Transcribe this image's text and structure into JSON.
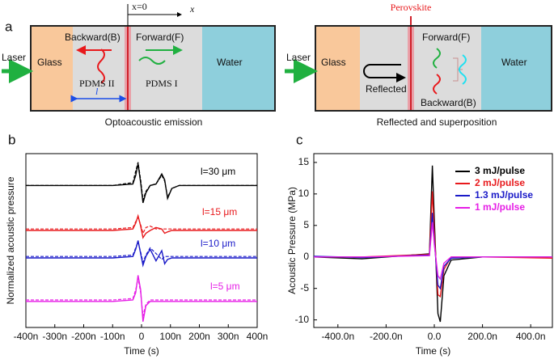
{
  "diagram": {
    "label": "a",
    "origin": "x=0",
    "axis": "x",
    "left": {
      "laser": "Laser",
      "glass": "Glass",
      "water": "Water",
      "backward": "Backward(B)",
      "forward": "Forward(F)",
      "pdms2": "PDMS II",
      "pdms1": "PDMS I",
      "thickness": "l",
      "caption": "Optoacoustic emission"
    },
    "right": {
      "perovskite": "Perovskite",
      "laser": "Laser",
      "glass": "Glass",
      "water": "Water",
      "forward": "Forward(F)",
      "reflected": "Reflected",
      "backward": "Backward(B)",
      "caption": "Reflected and superposition"
    }
  },
  "chart_data": [
    {
      "type": "line",
      "label": "b",
      "xlabel": "Time (s)",
      "ylabel": "Normalized acoustic pressure",
      "xlim": [
        -4e-07,
        4e-07
      ],
      "ylim": [
        0,
        12
      ],
      "xticks": [
        {
          "value": -4e-07,
          "label": "-400n"
        },
        {
          "value": -3e-07,
          "label": "-300n"
        },
        {
          "value": -2e-07,
          "label": "-200n"
        },
        {
          "value": -1e-07,
          "label": "-100n"
        },
        0,
        {
          "value": 1e-07,
          "label": "100n"
        },
        {
          "value": 2e-07,
          "label": "200n"
        },
        {
          "value": 3e-07,
          "label": "300n"
        },
        {
          "value": 4e-07,
          "label": "400n"
        }
      ],
      "x": [
        -4e-07,
        -1e-07,
        -3e-08,
        -2e-08,
        -1.2e-08,
        -3e-09,
        5e-09,
        1.5e-08,
        3e-08,
        5e-08,
        7e-08,
        8e-08,
        9e-08,
        1.05e-07,
        1.3e-07,
        2e-07,
        4e-07
      ],
      "series": [
        {
          "name": "l=30 μm",
          "color": "#000000",
          "values": [
            9.8,
            9.8,
            9.9,
            10.5,
            11.3,
            10,
            8.6,
            9.3,
            9.8,
            9.9,
            10.6,
            10.2,
            8.9,
            9.6,
            9.8,
            9.8,
            9.8
          ],
          "dashed_values": [
            9.8,
            9.8,
            10,
            10.8,
            11.4,
            10.2,
            8.8,
            9.4,
            9.8,
            9.9,
            10.5,
            10.1,
            9.0,
            9.6,
            9.8,
            9.8,
            9.8
          ]
        },
        {
          "name": "l=15 μm",
          "color": "#e8191c",
          "values": [
            6.7,
            6.7,
            6.8,
            7.2,
            7.7,
            7.0,
            6.2,
            6.5,
            6.7,
            6.9,
            6.8,
            6.5,
            6.6,
            6.7,
            6.7,
            6.7,
            6.7
          ],
          "dashed_values": [
            6.8,
            6.8,
            6.9,
            7.3,
            7.6,
            7.1,
            6.5,
            6.9,
            7.0,
            6.8,
            6.8,
            6.8,
            6.8,
            6.8,
            6.8,
            6.8,
            6.8
          ]
        },
        {
          "name": "l=10 μm",
          "color": "#1a1ac8",
          "values": [
            4.8,
            4.8,
            4.9,
            5.4,
            6.0,
            5.1,
            4.3,
            4.9,
            5.4,
            4.6,
            5.3,
            4.4,
            4.7,
            4.8,
            4.8,
            4.8,
            4.8
          ],
          "dashed_values": [
            4.9,
            4.9,
            5.0,
            5.5,
            5.9,
            5.2,
            4.5,
            5.0,
            5.5,
            5.1,
            4.7,
            4.9,
            4.9,
            4.9,
            4.9,
            4.9,
            4.9
          ]
        },
        {
          "name": "l=5 μm",
          "color": "#e61ee6",
          "values": [
            1.8,
            1.8,
            1.9,
            2.4,
            3.6,
            2.6,
            0.4,
            1.5,
            1.8,
            1.8,
            1.8,
            1.8,
            1.8,
            1.8,
            1.8,
            1.8,
            1.8
          ],
          "dashed_values": [
            1.9,
            1.9,
            2.0,
            2.6,
            3.4,
            2.4,
            0.8,
            1.6,
            1.9,
            1.9,
            1.9,
            1.9,
            1.9,
            1.9,
            1.9,
            1.9,
            1.9
          ]
        }
      ]
    },
    {
      "type": "line",
      "label": "c",
      "xlabel": "Time (s)",
      "ylabel": "Acoustic Pressure (MPa)",
      "xlim": [
        -5e-07,
        4.9e-07
      ],
      "ylim": [
        -11.2,
        16.4
      ],
      "xticks": [
        {
          "value": -4e-07,
          "label": "-400.0n"
        },
        {
          "value": -2e-07,
          "label": "-200.0n"
        },
        {
          "value": 0,
          "label": "0.0"
        },
        {
          "value": 2e-07,
          "label": "200.0n"
        },
        {
          "value": 4e-07,
          "label": "400.0n"
        }
      ],
      "yticks": [
        -10,
        -5,
        0,
        5,
        10,
        15
      ],
      "x": [
        -5e-07,
        -3e-07,
        -2e-08,
        -8e-09,
        0,
        1.5e-08,
        2.5e-08,
        4e-08,
        7e-08,
        2e-07,
        4.9e-07
      ],
      "series": [
        {
          "name": "3 mJ/pulse",
          "color": "#000000",
          "values": [
            0,
            -0.3,
            0.5,
            14.5,
            6,
            -9,
            -10.3,
            -3,
            -0.5,
            0,
            0
          ]
        },
        {
          "name": "2 mJ/pulse",
          "color": "#e8191c",
          "values": [
            0,
            0,
            0.4,
            10.4,
            4,
            -6,
            -6.3,
            -2,
            0,
            0,
            -0.2
          ]
        },
        {
          "name": "1.3 mJ/pulse",
          "color": "#1a1ac8",
          "values": [
            0.1,
            -0.1,
            0.3,
            7,
            2.5,
            -4.5,
            -5,
            -1.5,
            -0.2,
            0,
            0
          ]
        },
        {
          "name": "1 mJ/pulse",
          "color": "#e61ee6",
          "values": [
            0,
            0,
            0.2,
            5.5,
            2,
            -3,
            -3.5,
            -1,
            0,
            0,
            0
          ]
        }
      ]
    }
  ]
}
